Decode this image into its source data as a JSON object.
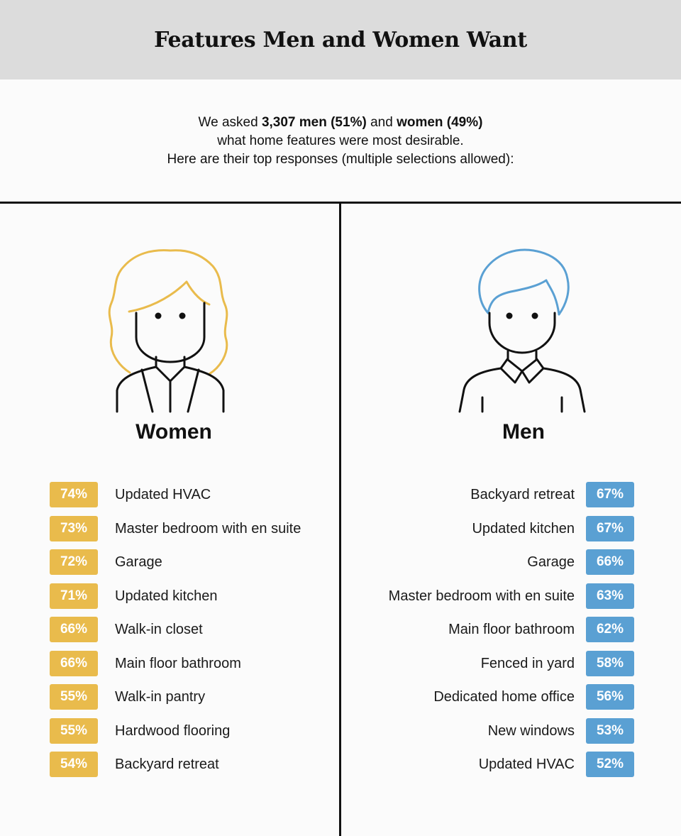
{
  "header": {
    "title_pre": "Features ",
    "title_bold": "Men and Women",
    "title_post": " Want"
  },
  "intro": {
    "line1_pre": "We asked ",
    "line1_bold1": "3,307 men (51%)",
    "line1_mid": " and ",
    "line1_bold2": "women (49%)",
    "line2": "what home features were most desirable.",
    "line3": "Here are their top responses (multiple selections allowed):"
  },
  "colors": {
    "women": "#e9bb4c",
    "men": "#5aa0d3"
  },
  "women": {
    "title": "Women",
    "icon": "woman-avatar-icon",
    "items": [
      {
        "pct": "74%",
        "label": "Updated HVAC"
      },
      {
        "pct": "73%",
        "label": "Master bedroom with en suite"
      },
      {
        "pct": "72%",
        "label": "Garage"
      },
      {
        "pct": "71%",
        "label": "Updated kitchen"
      },
      {
        "pct": "66%",
        "label": "Walk-in closet"
      },
      {
        "pct": "66%",
        "label": "Main floor bathroom"
      },
      {
        "pct": "55%",
        "label": "Walk-in pantry"
      },
      {
        "pct": "55%",
        "label": "Hardwood flooring"
      },
      {
        "pct": "54%",
        "label": "Backyard retreat"
      }
    ]
  },
  "men": {
    "title": "Men",
    "icon": "man-avatar-icon",
    "items": [
      {
        "pct": "67%",
        "label": "Backyard retreat"
      },
      {
        "pct": "67%",
        "label": "Updated kitchen"
      },
      {
        "pct": "66%",
        "label": "Garage"
      },
      {
        "pct": "63%",
        "label": "Master bedroom with en suite"
      },
      {
        "pct": "62%",
        "label": "Main floor bathroom"
      },
      {
        "pct": "58%",
        "label": "Fenced in yard"
      },
      {
        "pct": "56%",
        "label": "Dedicated home office"
      },
      {
        "pct": "53%",
        "label": "New windows"
      },
      {
        "pct": "52%",
        "label": "Updated HVAC"
      }
    ]
  }
}
